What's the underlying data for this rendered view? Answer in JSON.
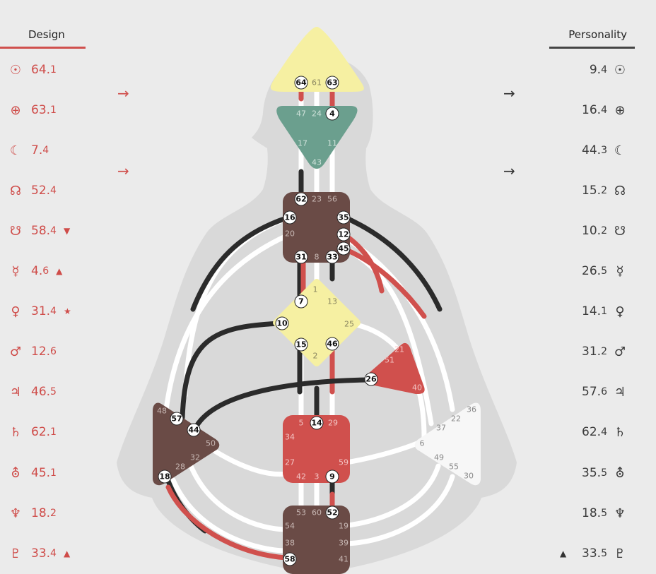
{
  "design": {
    "heading": "Design",
    "rows": [
      {
        "symbol": "☉",
        "value": "64.",
        "line": "1",
        "mark": ""
      },
      {
        "symbol": "⊕",
        "value": "63.",
        "line": "1",
        "mark": ""
      },
      {
        "symbol": "☾",
        "value": "7.",
        "line": "4",
        "mark": ""
      },
      {
        "symbol": "☊",
        "value": "52.",
        "line": "4",
        "mark": ""
      },
      {
        "symbol": "☋",
        "value": "58.",
        "line": "4",
        "mark": "▼"
      },
      {
        "symbol": "☿",
        "value": "4.",
        "line": "6",
        "mark": "▲"
      },
      {
        "symbol": "♀",
        "value": "31.",
        "line": "4",
        "mark": "★"
      },
      {
        "symbol": "♂",
        "value": "12.",
        "line": "6",
        "mark": ""
      },
      {
        "symbol": "♃",
        "value": "46.",
        "line": "5",
        "mark": ""
      },
      {
        "symbol": "♄",
        "value": "62.",
        "line": "1",
        "mark": ""
      },
      {
        "symbol": "⛢",
        "value": "45.",
        "line": "1",
        "mark": ""
      },
      {
        "symbol": "♆",
        "value": "18.",
        "line": "2",
        "mark": ""
      },
      {
        "symbol": "♇",
        "value": "33.",
        "line": "4",
        "mark": "▲"
      }
    ]
  },
  "personality": {
    "heading": "Personality",
    "rows": [
      {
        "symbol": "☉",
        "value": "9.",
        "line": "4",
        "mark": ""
      },
      {
        "symbol": "⊕",
        "value": "16.",
        "line": "4",
        "mark": ""
      },
      {
        "symbol": "☾",
        "value": "44.",
        "line": "3",
        "mark": ""
      },
      {
        "symbol": "☊",
        "value": "15.",
        "line": "2",
        "mark": ""
      },
      {
        "symbol": "☋",
        "value": "10.",
        "line": "2",
        "mark": ""
      },
      {
        "symbol": "☿",
        "value": "26.",
        "line": "5",
        "mark": ""
      },
      {
        "symbol": "♀",
        "value": "14.",
        "line": "1",
        "mark": ""
      },
      {
        "symbol": "♂",
        "value": "31.",
        "line": "2",
        "mark": ""
      },
      {
        "symbol": "♃",
        "value": "57.",
        "line": "6",
        "mark": ""
      },
      {
        "symbol": "♄",
        "value": "62.",
        "line": "4",
        "mark": ""
      },
      {
        "symbol": "⛢",
        "value": "35.",
        "line": "5",
        "mark": ""
      },
      {
        "symbol": "♆",
        "value": "18.",
        "line": "5",
        "mark": ""
      },
      {
        "symbol": "♇",
        "value": "33.",
        "line": "5",
        "mark": "▲"
      }
    ]
  },
  "arrows": {
    "left": "→",
    "right": "→"
  },
  "colors": {
    "design": "#d0504d",
    "personality": "#2b2b2b",
    "defined_brown": "#6a4b46",
    "defined_yellow": "#f6f0a2",
    "defined_green": "#6b9f8e",
    "undefined": "#f7f7f7",
    "silhouette": "#d9d9d9"
  },
  "gates": {
    "head": [
      "64",
      "61",
      "63"
    ],
    "ajna": [
      "47",
      "24",
      "4",
      "17",
      "11",
      "43"
    ],
    "throat": [
      "62",
      "23",
      "56",
      "16",
      "35",
      "20",
      "12",
      "45",
      "31",
      "8",
      "33"
    ],
    "g": [
      "1",
      "7",
      "13",
      "10",
      "25",
      "15",
      "46",
      "2"
    ],
    "ego": [
      "21",
      "51",
      "26",
      "40"
    ],
    "spleen": [
      "48",
      "57",
      "44",
      "50",
      "32",
      "28",
      "18"
    ],
    "sacral": [
      "5",
      "14",
      "29",
      "34",
      "27",
      "59",
      "42",
      "3",
      "9"
    ],
    "solar": [
      "36",
      "22",
      "37",
      "6",
      "49",
      "55",
      "30"
    ],
    "root": [
      "53",
      "60",
      "52",
      "54",
      "19",
      "38",
      "39",
      "58",
      "41"
    ]
  }
}
